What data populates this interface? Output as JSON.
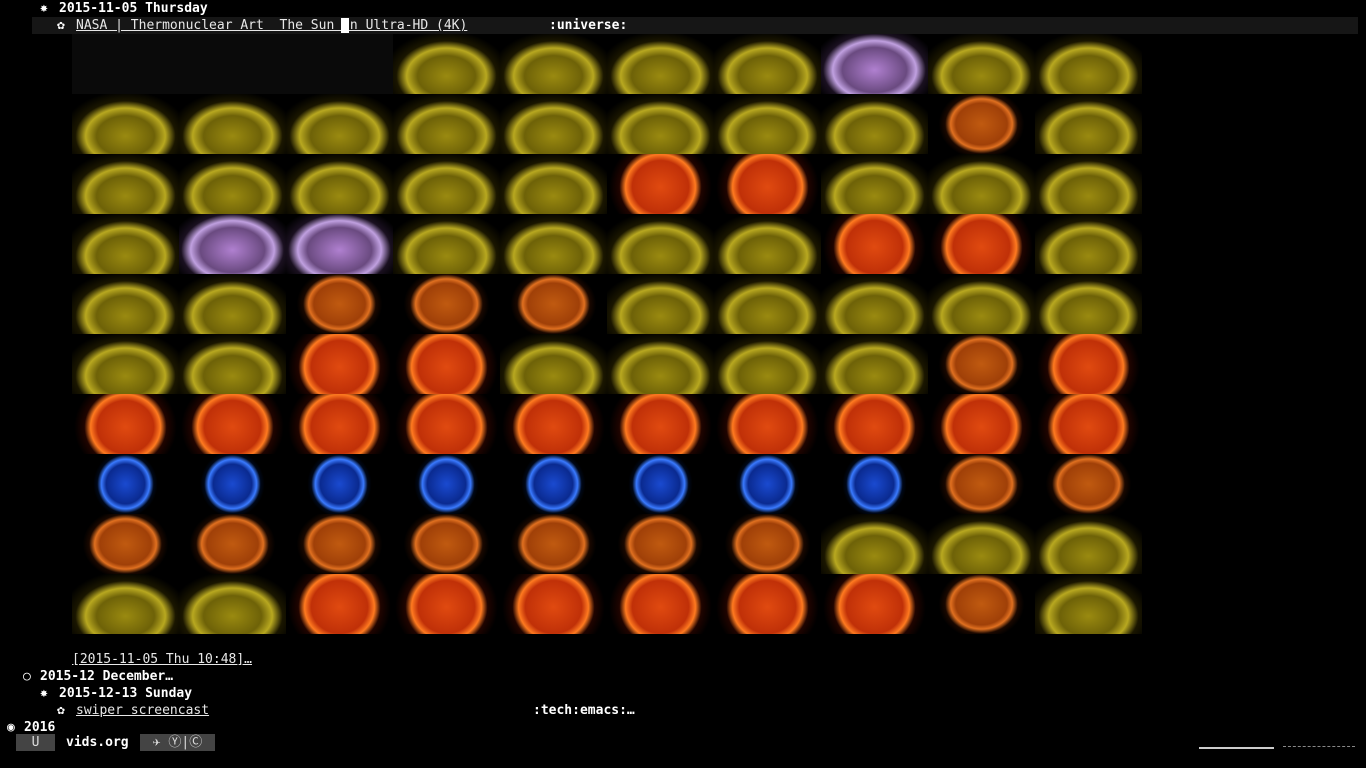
{
  "outline": {
    "day1": {
      "title": "2015-11-05 Thursday"
    },
    "entry1": {
      "link": "NASA | Thermonuclear Art  The Sun In Ultra-HD (4K)",
      "tags": ":universe:",
      "timestamp": "[2015-11-05 Thu 10:48]…"
    },
    "month": {
      "title": "2015-12 December…"
    },
    "day2": {
      "title": "2015-12-13 Sunday"
    },
    "entry2": {
      "link": "swiper screencast",
      "tags": ":tech:emacs:…"
    },
    "year": {
      "title": "2016"
    }
  },
  "mode_line": {
    "state": "U",
    "buffer": "vids.org",
    "modes": "Ⓨ|Ⓒ"
  }
}
